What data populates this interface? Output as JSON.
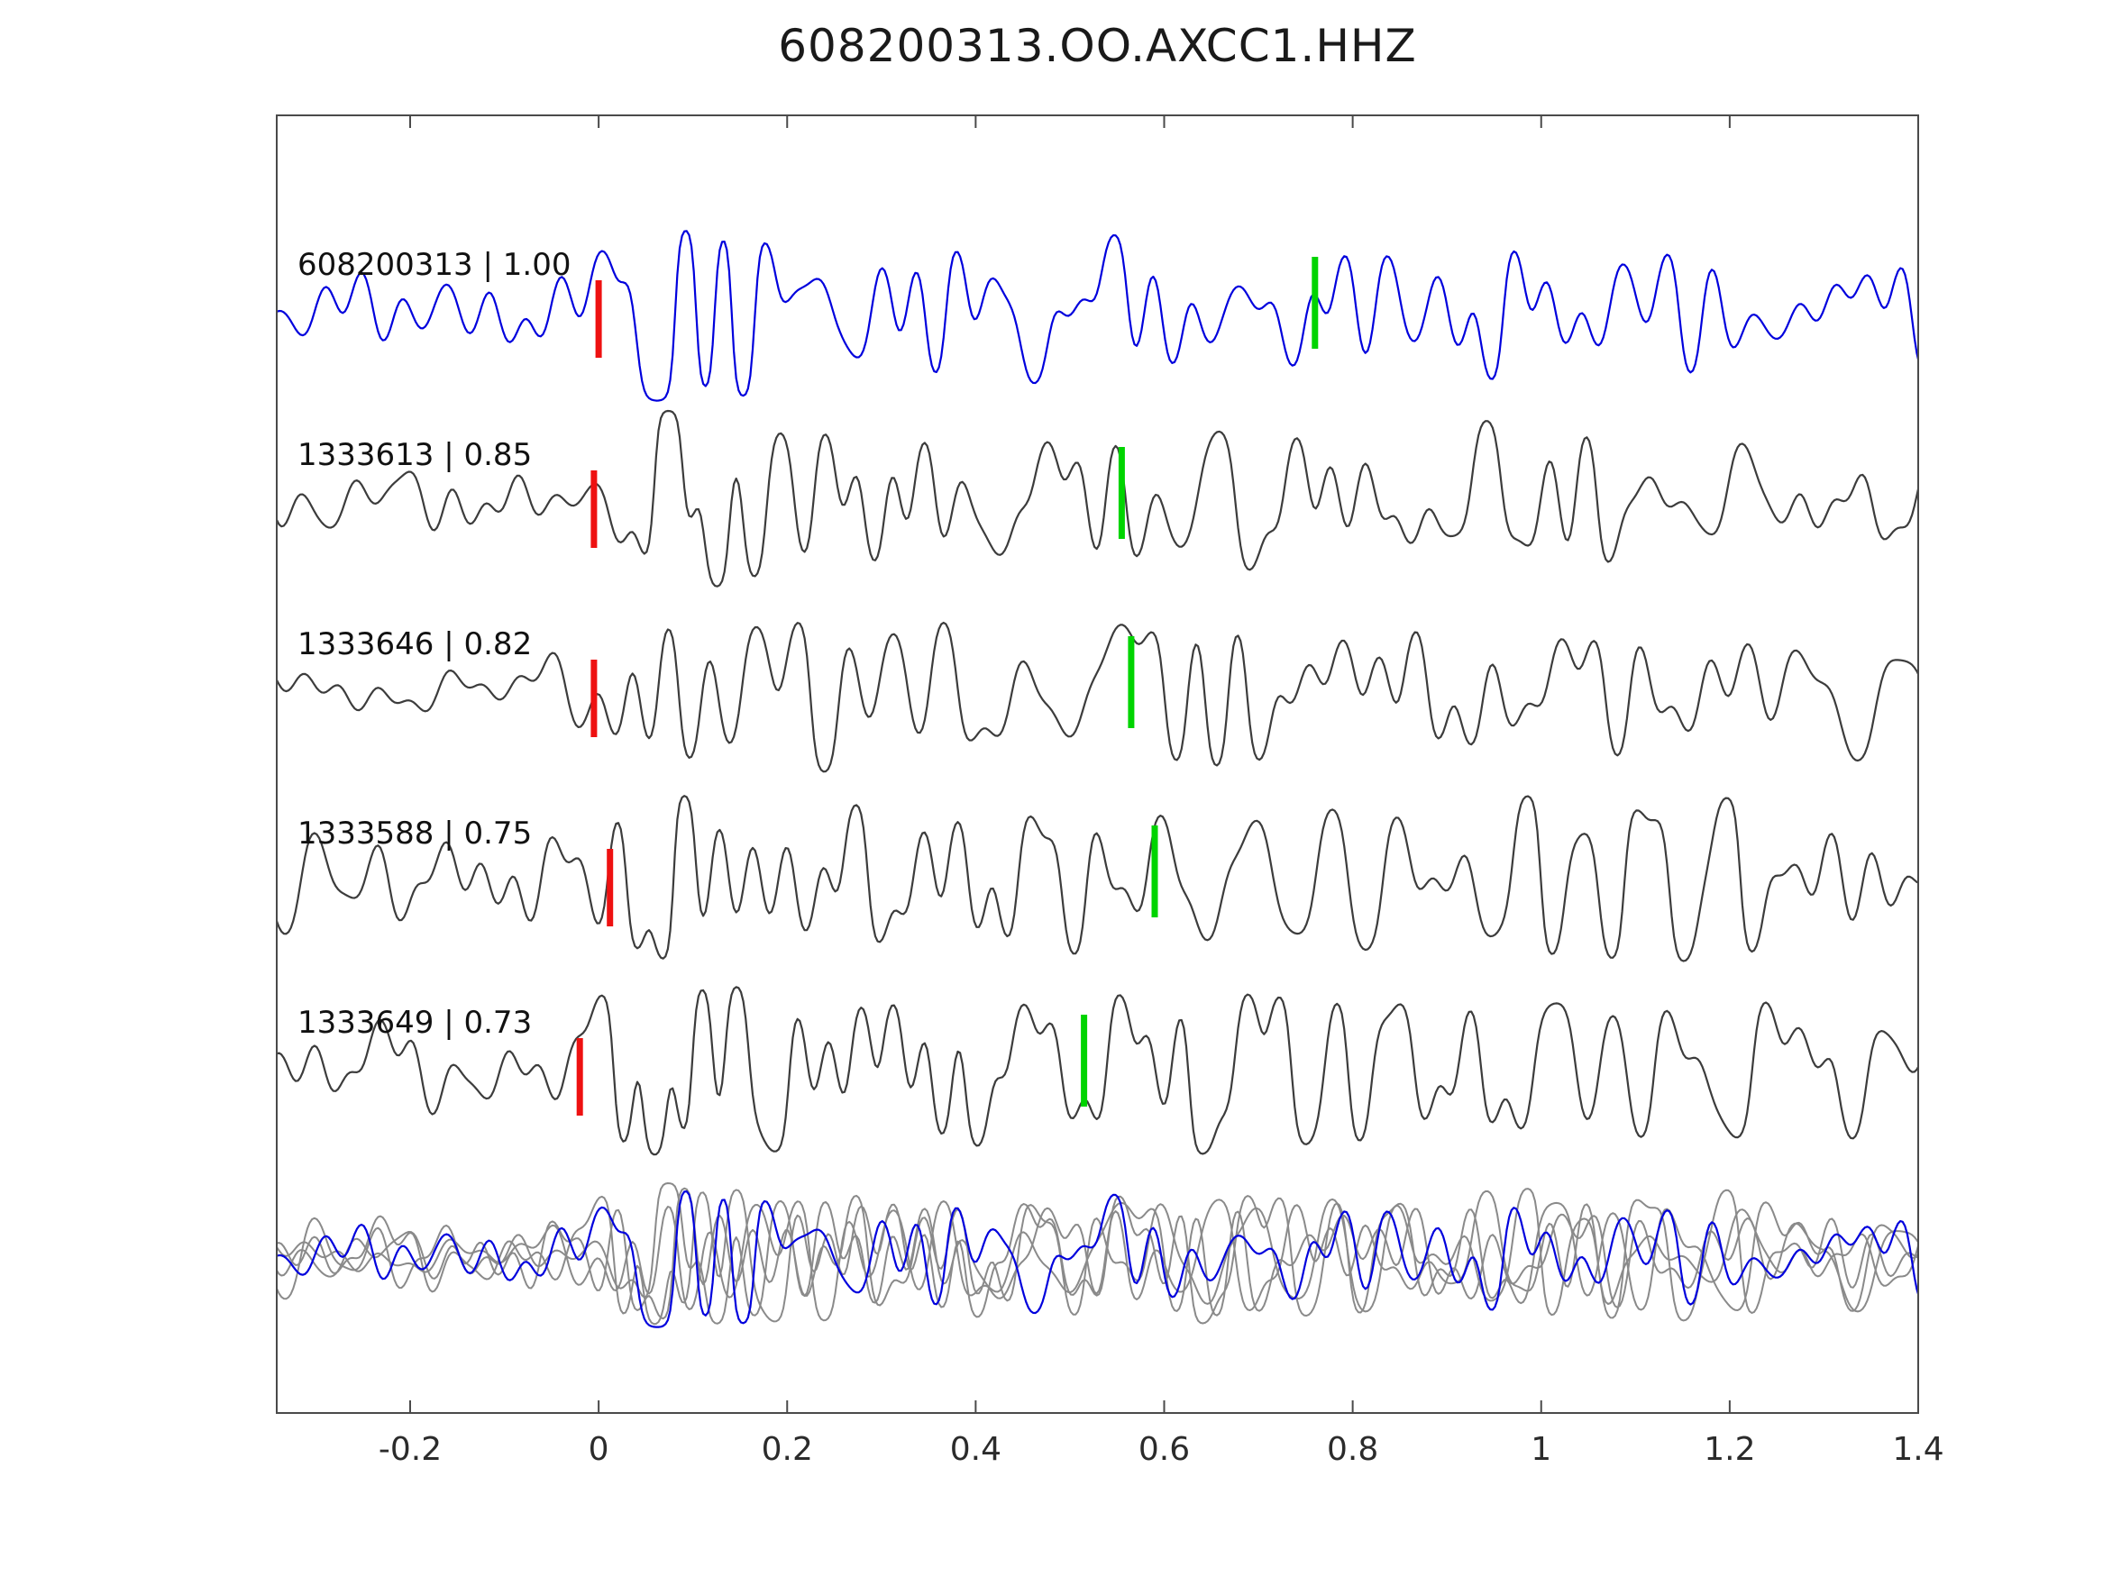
{
  "chart_data": {
    "type": "line",
    "title": "608200313.OO.AXCC1.HHZ",
    "xlabel": "",
    "ylabel": "",
    "xlim": [
      -0.34,
      1.4
    ],
    "grid": false,
    "x_ticks": [
      -0.2,
      0,
      0.2,
      0.4,
      0.6,
      0.8,
      1,
      1.2,
      1.4
    ],
    "x_tick_labels": [
      "-0.2",
      "0",
      "0.2",
      "0.4",
      "0.6",
      "0.8",
      "1",
      "1.2",
      "1.4"
    ],
    "description": "Template waveform (blue) compared with four detected event waveforms (gray); red bars mark the pick near t=0, green bars mark a secondary pick; bottom row overlays all aligned waveforms.",
    "traces": [
      {
        "label": "608200313 | 1.00",
        "id": "608200313",
        "correlation": 1.0,
        "role": "reference",
        "red_pick_t": 0.0,
        "green_pick_t": 0.76
      },
      {
        "label": "1333613 | 0.85",
        "id": "1333613",
        "correlation": 0.85,
        "role": "detection",
        "red_pick_t": -0.005,
        "green_pick_t": 0.555
      },
      {
        "label": "1333646 | 0.82",
        "id": "1333646",
        "correlation": 0.82,
        "role": "detection",
        "red_pick_t": -0.005,
        "green_pick_t": 0.565
      },
      {
        "label": "1333588 | 0.75",
        "id": "1333588",
        "correlation": 0.75,
        "role": "detection",
        "red_pick_t": 0.012,
        "green_pick_t": 0.59
      },
      {
        "label": "1333649 | 0.73",
        "id": "1333649",
        "correlation": 0.73,
        "role": "detection",
        "red_pick_t": -0.02,
        "green_pick_t": 0.515
      }
    ],
    "overlay_row": {
      "contains": "all traces overlaid, reference in blue on top of gray detections"
    }
  },
  "colors": {
    "reference_trace": "#0000dd",
    "detection_trace": "#3c3c3c",
    "overlay_gray": "#8a8a8a",
    "pick_red": "#ee1111",
    "pick_green": "#00d400",
    "axis": "#4a4a4a",
    "tick_label": "#2b2b2b",
    "trace_label": "#111111"
  }
}
